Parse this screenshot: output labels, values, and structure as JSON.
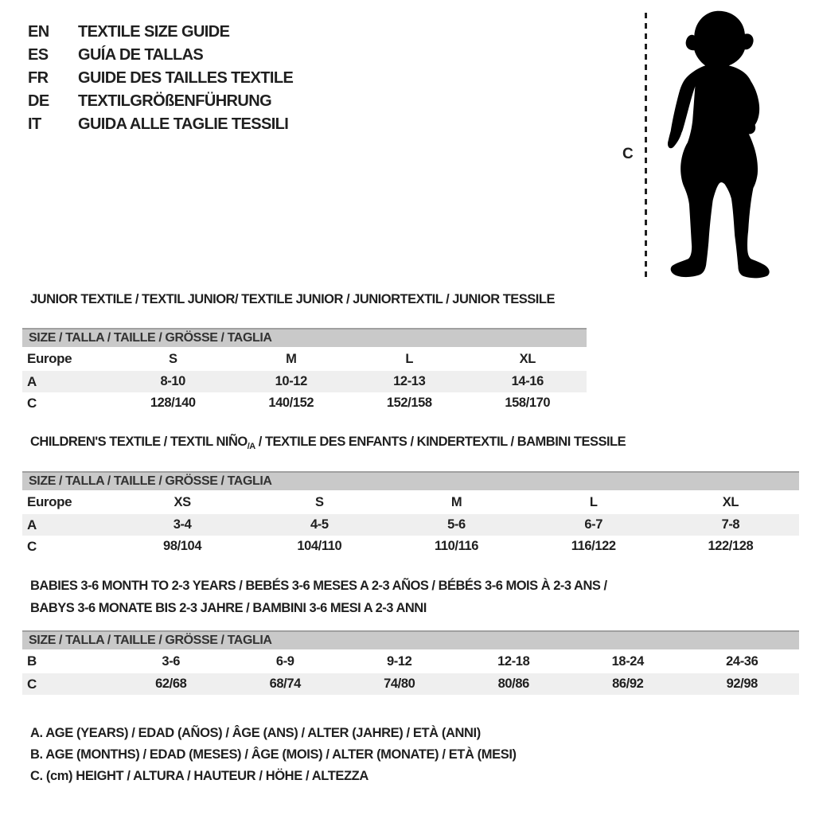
{
  "title_block": {
    "languages": [
      {
        "code": "EN",
        "label": "TEXTILE SIZE GUIDE"
      },
      {
        "code": "ES",
        "label": "GUÍA DE TALLAS"
      },
      {
        "code": "FR",
        "label": "GUIDE DES TAILLES TEXTILE"
      },
      {
        "code": "DE",
        "label": "TEXTILGRÖßENFÜHRUNG"
      },
      {
        "code": "IT",
        "label": "GUIDA ALLE TAGLIE TESSILI"
      }
    ]
  },
  "figure": {
    "marker_label": "C",
    "silhouette": "toddler-standing-silhouette"
  },
  "sections": {
    "junior": {
      "title": "JUNIOR TEXTILE / TEXTIL JUNIOR/ TEXTILE JUNIOR / JUNIORTEXTIL / JUNIOR TESSILE",
      "size_header": "SIZE / TALLA / TAILLE / GRÖSSE / TAGLIA",
      "rows": [
        {
          "label": "Europe",
          "values": [
            "S",
            "M",
            "L",
            "XL"
          ],
          "shaded": false,
          "tall": true
        },
        {
          "label": "A",
          "values": [
            "8-10",
            "10-12",
            "12-13",
            "14-16"
          ],
          "shaded": true,
          "tall": false
        },
        {
          "label": "C",
          "values": [
            "128/140",
            "140/152",
            "152/158",
            "158/170"
          ],
          "shaded": false,
          "tall": false
        }
      ]
    },
    "children": {
      "title_before": "CHILDREN'S TEXTILE / TEXTIL NIÑO",
      "title_sub": "/A",
      "title_after": " / TEXTILE DES ENFANTS / KINDERTEXTIL / BAMBINI TESSILE",
      "size_header": "SIZE / TALLA / TAILLE / GRÖSSE / TAGLIA",
      "rows": [
        {
          "label": "Europe",
          "values": [
            "XS",
            "S",
            "M",
            "L",
            "XL"
          ],
          "shaded": false,
          "tall": true
        },
        {
          "label": "A",
          "values": [
            "3-4",
            "4-5",
            "5-6",
            "6-7",
            "7-8"
          ],
          "shaded": true,
          "tall": false
        },
        {
          "label": "C",
          "values": [
            "98/104",
            "104/110",
            "110/116",
            "116/122",
            "122/128"
          ],
          "shaded": false,
          "tall": false
        }
      ]
    },
    "babies": {
      "title_line1": "BABIES 3-6 MONTH TO 2-3 YEARS / BEBÉS 3-6 MESES A 2-3 AÑOS / BÉBÉS 3-6 MOIS À 2-3 ANS /",
      "title_line2": "BABYS 3-6 MONATE BIS 2-3 JAHRE / BAMBINI 3-6 MESI A 2-3 ANNI",
      "size_header": "SIZE / TALLA / TAILLE / GRÖSSE / TAGLIA",
      "rows": [
        {
          "label": "B",
          "values": [
            "3-6",
            "6-9",
            "9-12",
            "12-18",
            "18-24",
            "24-36"
          ],
          "shaded": false,
          "tall": true
        },
        {
          "label": "C",
          "values": [
            "62/68",
            "68/74",
            "74/80",
            "80/86",
            "86/92",
            "92/98"
          ],
          "shaded": true,
          "tall": false
        }
      ]
    }
  },
  "legend": {
    "lines": [
      "A. AGE (YEARS) / EDAD (AÑOS) / ÂGE (ANS) / ALTER (JAHRE) / ETÀ (ANNI)",
      "B. AGE (MONTHS) / EDAD (MESES) / ÂGE (MOIS) / ALTER (MONATE) / ETÀ (MESI)",
      "C. (cm) HEIGHT / ALTURA / HAUTEUR / HÖHE / ALTEZZA"
    ]
  },
  "colors": {
    "background": "#ffffff",
    "text": "#1f1f1f",
    "table_header_bg": "#c9c9c9",
    "table_header_border": "#a0a0a0",
    "shaded_row_bg": "#efefef",
    "silhouette": "#000000"
  }
}
